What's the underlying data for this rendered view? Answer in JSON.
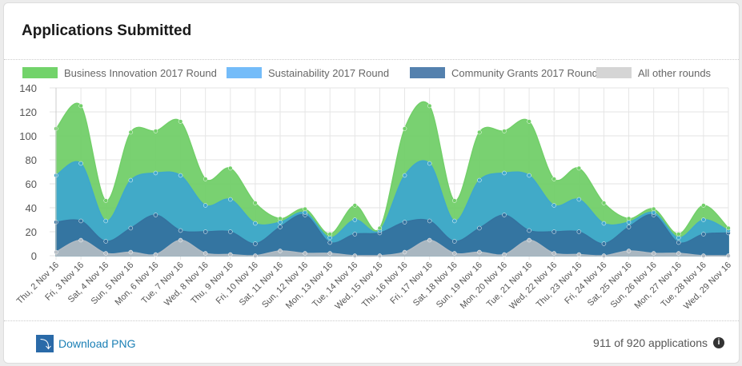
{
  "title": "Applications Submitted",
  "footer": {
    "download_label": "Download PNG",
    "count_text": "911 of 920 applications",
    "info_icon": "i"
  },
  "chart_data": {
    "type": "area",
    "stacked": true,
    "ylim": [
      0,
      140
    ],
    "yticks": [
      0,
      20,
      40,
      60,
      80,
      100,
      120,
      140
    ],
    "categories": [
      "Thu, 2 Nov 16",
      "Fri, 3 Nov 16",
      "Sat, 4 Nov 16",
      "Sun, 5 Nov 16",
      "Mon, 6 Nov 16",
      "Tue, 7 Nov 16",
      "Wed, 8 Nov 16",
      "Thu, 9 Nov 16",
      "Fri, 10 Nov 16",
      "Sat, 11 Nov 16",
      "Sun, 12 Nov 16",
      "Mon, 13 Nov 16",
      "Tue, 14 Nov 16",
      "Wed, 15 Nov 16",
      "Thu, 16 Nov 16",
      "Fri, 17 Nov 16",
      "Sat, 18 Nov 16",
      "Sun, 19 Nov 16",
      "Mon, 20 Nov 16",
      "Tue, 21 Nov 16",
      "Wed, 22 Nov 16",
      "Thu, 23 Nov 16",
      "Fri, 24 Nov 16",
      "Sat, 25 Nov 16",
      "Sun, 26 Nov 16",
      "Mon, 27 Nov 16",
      "Tue, 28 Nov 16",
      "Wed, 29 Nov 16"
    ],
    "legend_position": "top",
    "series": [
      {
        "name": "All other rounds",
        "color": "#b0bac3",
        "values": [
          3,
          13,
          2,
          3,
          1,
          13,
          2,
          1,
          0,
          4,
          2,
          2,
          0,
          0,
          3,
          13,
          2,
          3,
          1,
          13,
          2,
          1,
          0,
          4,
          2,
          2,
          0,
          0
        ]
      },
      {
        "name": "Community Grants 2017 Round",
        "color": "#34729f",
        "values": [
          25,
          16,
          10,
          20,
          33,
          8,
          18,
          19,
          10,
          20,
          32,
          9,
          18,
          19,
          25,
          16,
          10,
          20,
          33,
          8,
          18,
          19,
          10,
          20,
          32,
          9,
          18,
          19
        ]
      },
      {
        "name": "Sustainability 2017 Round",
        "color": "#3ea8cc",
        "values": [
          39,
          48,
          17,
          40,
          35,
          46,
          22,
          27,
          17,
          4,
          2,
          4,
          12,
          2,
          39,
          48,
          17,
          40,
          35,
          46,
          22,
          27,
          17,
          4,
          2,
          4,
          12,
          2
        ]
      },
      {
        "name": "Business Innovation 2017 Round",
        "color": "#72cf69",
        "values": [
          39,
          48,
          17,
          40,
          35,
          45,
          22,
          26,
          17,
          3,
          3,
          3,
          12,
          2,
          39,
          48,
          17,
          40,
          35,
          45,
          22,
          26,
          17,
          3,
          3,
          3,
          12,
          2
        ]
      }
    ],
    "legend": [
      {
        "name": "Business Innovation 2017 Round",
        "color": "#72d36a"
      },
      {
        "name": "Sustainability 2017 Round",
        "color": "#74bcf9"
      },
      {
        "name": "Community Grants 2017 Round",
        "color": "#5481ae"
      },
      {
        "name": "All other rounds",
        "color": "#d5d5d5"
      }
    ]
  }
}
